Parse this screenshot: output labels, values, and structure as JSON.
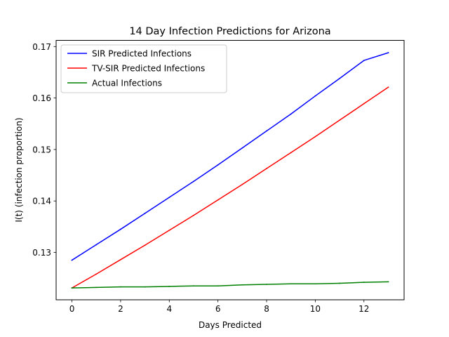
{
  "chart_data": {
    "type": "line",
    "title": "14 Day Infection Predictions for Arizona",
    "xlabel": "Days Predicted",
    "ylabel": "I(t) (infection proportion)",
    "xlim": [
      -0.65,
      13.65
    ],
    "ylim": [
      0.1208,
      0.1712
    ],
    "xticks": [
      0,
      2,
      4,
      6,
      8,
      10,
      12
    ],
    "xtick_labels": [
      "0",
      "2",
      "4",
      "6",
      "8",
      "10",
      "12"
    ],
    "yticks": [
      0.13,
      0.14,
      0.15,
      0.16,
      0.17
    ],
    "ytick_labels": [
      "0.13",
      "0.14",
      "0.15",
      "0.16",
      "0.17"
    ],
    "grid": false,
    "legend_position": "top-left",
    "x": [
      0,
      1,
      2,
      3,
      4,
      5,
      6,
      7,
      8,
      9,
      10,
      11,
      12,
      13
    ],
    "series": [
      {
        "name": "SIR Predicted Infections",
        "color": "#0000ff",
        "values": [
          0.1285,
          0.1315,
          0.1345,
          0.1376,
          0.1407,
          0.1438,
          0.147,
          0.1503,
          0.1536,
          0.1569,
          0.1604,
          0.1638,
          0.1673,
          0.1688
        ]
      },
      {
        "name": "TV-SIR Predicted Infections",
        "color": "#ff0000",
        "values": [
          0.1231,
          0.1258,
          0.1286,
          0.1314,
          0.1343,
          0.1372,
          0.1402,
          0.1432,
          0.1463,
          0.1494,
          0.1525,
          0.1557,
          0.1589,
          0.1621
        ]
      },
      {
        "name": "Actual Infections",
        "color": "#008000",
        "values": [
          0.1231,
          0.1232,
          0.1233,
          0.1233,
          0.1234,
          0.1235,
          0.1235,
          0.1237,
          0.1238,
          0.1239,
          0.1239,
          0.124,
          0.1242,
          0.1243
        ]
      }
    ]
  }
}
